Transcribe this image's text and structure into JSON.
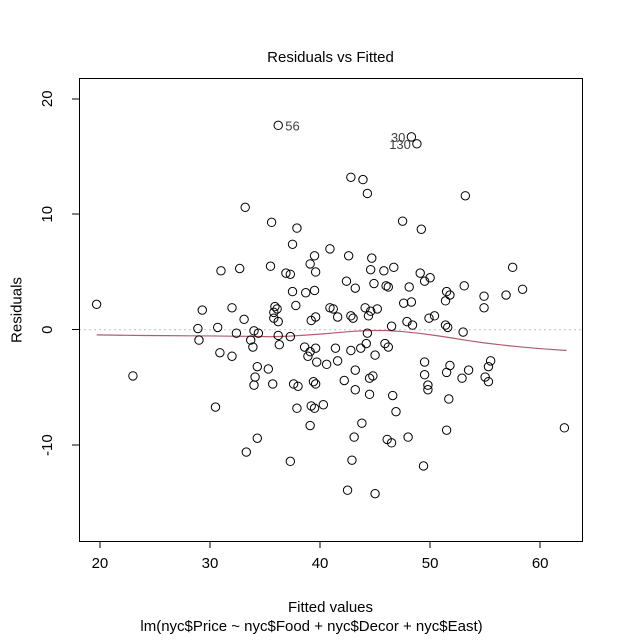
{
  "chart_data": {
    "type": "scatter",
    "title": "Residuals vs Fitted",
    "xlabel": "Fitted values",
    "ylabel": "Residuals",
    "subtitle": "lm(nyc$Price ~ nyc$Food + nyc$Decor + nyc$East)",
    "xlim": [
      18.1,
      63.8
    ],
    "ylim": [
      -18.3,
      21.8
    ],
    "x_ticks": [
      20,
      30,
      40,
      50,
      60
    ],
    "y_ticks": [
      -10,
      0,
      10,
      20
    ],
    "grid": false,
    "legend": "none",
    "point_style": {
      "marker": "open-circle",
      "color": "#000000",
      "radius": 4.2
    },
    "reference_line": {
      "y": 0,
      "style": "dotted",
      "color": "#bfbfbf"
    },
    "smooth_line": {
      "color": "#b25c6e",
      "points": [
        [
          19.7,
          -0.45
        ],
        [
          22,
          -0.48
        ],
        [
          24,
          -0.5
        ],
        [
          26,
          -0.51
        ],
        [
          28,
          -0.53
        ],
        [
          30,
          -0.54
        ],
        [
          32,
          -0.56
        ],
        [
          34,
          -0.58
        ],
        [
          35.5,
          -0.61
        ],
        [
          37,
          -0.57
        ],
        [
          38.5,
          -0.48
        ],
        [
          40,
          -0.38
        ],
        [
          41.5,
          -0.26
        ],
        [
          43,
          -0.14
        ],
        [
          44.5,
          -0.07
        ],
        [
          46,
          -0.07
        ],
        [
          47.5,
          -0.16
        ],
        [
          49,
          -0.31
        ],
        [
          50.5,
          -0.5
        ],
        [
          52,
          -0.72
        ],
        [
          53.5,
          -0.95
        ],
        [
          55,
          -1.15
        ],
        [
          56.5,
          -1.32
        ],
        [
          58,
          -1.47
        ],
        [
          59.5,
          -1.6
        ],
        [
          61,
          -1.71
        ],
        [
          62.4,
          -1.8
        ]
      ]
    },
    "labeled_points": [
      {
        "label": "56",
        "x": 36.2,
        "y": 17.7,
        "side": "right"
      },
      {
        "label": "30",
        "x": 48.3,
        "y": 16.7,
        "side": "left"
      },
      {
        "label": "130",
        "x": 48.8,
        "y": 16.1,
        "side": "left"
      }
    ],
    "points": [
      [
        36.2,
        17.7
      ],
      [
        48.3,
        16.7
      ],
      [
        48.8,
        16.1
      ],
      [
        42.8,
        13.2
      ],
      [
        43.9,
        13.0
      ],
      [
        44.3,
        11.8
      ],
      [
        53.2,
        11.6
      ],
      [
        33.2,
        10.6
      ],
      [
        35.6,
        9.3
      ],
      [
        37.9,
        8.8
      ],
      [
        47.5,
        9.4
      ],
      [
        49.2,
        8.7
      ],
      [
        37.5,
        7.4
      ],
      [
        40.9,
        7.0
      ],
      [
        39.5,
        6.4
      ],
      [
        42.6,
        6.4
      ],
      [
        44.7,
        6.2
      ],
      [
        39.1,
        5.7
      ],
      [
        35.5,
        5.5
      ],
      [
        57.5,
        5.4
      ],
      [
        46.7,
        5.4
      ],
      [
        32.7,
        5.3
      ],
      [
        44.6,
        5.2
      ],
      [
        45.8,
        5.1
      ],
      [
        31.0,
        5.1
      ],
      [
        39.6,
        5.0
      ],
      [
        36.9,
        4.9
      ],
      [
        49.1,
        4.9
      ],
      [
        37.3,
        4.8
      ],
      [
        50.0,
        4.5
      ],
      [
        42.4,
        4.2
      ],
      [
        49.5,
        4.2
      ],
      [
        44.9,
        4.0
      ],
      [
        46.0,
        3.8
      ],
      [
        46.2,
        3.7
      ],
      [
        53.1,
        3.8
      ],
      [
        48.1,
        3.7
      ],
      [
        43.2,
        3.6
      ],
      [
        58.4,
        3.5
      ],
      [
        39.5,
        3.4
      ],
      [
        37.5,
        3.3
      ],
      [
        51.5,
        3.3
      ],
      [
        38.7,
        3.2
      ],
      [
        51.8,
        3.0
      ],
      [
        56.9,
        3.0
      ],
      [
        54.9,
        2.9
      ],
      [
        51.4,
        2.5
      ],
      [
        48.3,
        2.4
      ],
      [
        47.6,
        2.3
      ],
      [
        19.7,
        2.2
      ],
      [
        37.8,
        2.1
      ],
      [
        35.9,
        2.0
      ],
      [
        40.9,
        1.9
      ],
      [
        54.9,
        1.9
      ],
      [
        32.0,
        1.9
      ],
      [
        41.2,
        1.8
      ],
      [
        36.1,
        1.8
      ],
      [
        44.1,
        1.9
      ],
      [
        44.6,
        1.6
      ],
      [
        45.2,
        1.8
      ],
      [
        29.3,
        1.7
      ],
      [
        35.8,
        1.5
      ],
      [
        50.4,
        1.2
      ],
      [
        42.8,
        1.2
      ],
      [
        44.4,
        1.2
      ],
      [
        39.6,
        1.1
      ],
      [
        41.6,
        1.1
      ],
      [
        43.0,
        1.0
      ],
      [
        35.8,
        1.0
      ],
      [
        49.9,
        1.0
      ],
      [
        33.1,
        0.9
      ],
      [
        39.2,
        0.8
      ],
      [
        36.2,
        0.7
      ],
      [
        47.9,
        0.7
      ],
      [
        51.4,
        0.4
      ],
      [
        48.4,
        0.4
      ],
      [
        46.5,
        0.3
      ],
      [
        30.7,
        0.2
      ],
      [
        51.6,
        0.2
      ],
      [
        28.9,
        0.1
      ],
      [
        34.0,
        -0.1
      ],
      [
        53.0,
        -0.2
      ],
      [
        32.4,
        -0.3
      ],
      [
        34.4,
        -0.3
      ],
      [
        44.3,
        -0.3
      ],
      [
        36.2,
        -0.5
      ],
      [
        37.3,
        -0.6
      ],
      [
        29.0,
        -0.9
      ],
      [
        33.7,
        -0.9
      ],
      [
        44.2,
        -1.2
      ],
      [
        45.9,
        -1.2
      ],
      [
        36.3,
        -1.3
      ],
      [
        33.9,
        -1.5
      ],
      [
        38.6,
        -1.5
      ],
      [
        46.2,
        -1.5
      ],
      [
        39.6,
        -1.6
      ],
      [
        41.4,
        -1.6
      ],
      [
        43.7,
        -1.6
      ],
      [
        42.8,
        -1.8
      ],
      [
        39.1,
        -1.9
      ],
      [
        30.9,
        -2.0
      ],
      [
        45.0,
        -2.2
      ],
      [
        32.0,
        -2.3
      ],
      [
        38.9,
        -2.3
      ],
      [
        41.6,
        -2.7
      ],
      [
        55.5,
        -2.7
      ],
      [
        39.7,
        -2.8
      ],
      [
        49.5,
        -2.8
      ],
      [
        40.6,
        -3.0
      ],
      [
        51.8,
        -3.1
      ],
      [
        34.3,
        -3.2
      ],
      [
        55.3,
        -3.2
      ],
      [
        35.3,
        -3.4
      ],
      [
        53.5,
        -3.5
      ],
      [
        43.2,
        -3.5
      ],
      [
        51.5,
        -3.7
      ],
      [
        49.5,
        -3.9
      ],
      [
        23.0,
        -4.0
      ],
      [
        44.8,
        -4.0
      ],
      [
        34.1,
        -4.1
      ],
      [
        55.0,
        -4.1
      ],
      [
        42.2,
        -4.4
      ],
      [
        44.5,
        -4.2
      ],
      [
        52.9,
        -4.2
      ],
      [
        39.4,
        -4.5
      ],
      [
        55.3,
        -4.5
      ],
      [
        35.7,
        -4.7
      ],
      [
        37.6,
        -4.7
      ],
      [
        39.6,
        -4.7
      ],
      [
        34.0,
        -4.8
      ],
      [
        49.8,
        -4.8
      ],
      [
        38.0,
        -4.9
      ],
      [
        43.2,
        -5.2
      ],
      [
        49.8,
        -5.2
      ],
      [
        44.5,
        -5.6
      ],
      [
        46.6,
        -5.7
      ],
      [
        51.7,
        -6.0
      ],
      [
        40.3,
        -6.5
      ],
      [
        39.2,
        -6.6
      ],
      [
        30.5,
        -6.7
      ],
      [
        37.9,
        -6.8
      ],
      [
        39.5,
        -6.8
      ],
      [
        46.9,
        -7.1
      ],
      [
        43.8,
        -8.1
      ],
      [
        39.1,
        -8.3
      ],
      [
        62.2,
        -8.5
      ],
      [
        51.5,
        -8.7
      ],
      [
        43.1,
        -9.3
      ],
      [
        48.0,
        -9.3
      ],
      [
        34.3,
        -9.4
      ],
      [
        46.1,
        -9.5
      ],
      [
        46.5,
        -9.8
      ],
      [
        33.3,
        -10.6
      ],
      [
        42.9,
        -11.3
      ],
      [
        37.3,
        -11.4
      ],
      [
        49.4,
        -11.8
      ],
      [
        42.5,
        -13.9
      ],
      [
        45.0,
        -14.2
      ]
    ]
  }
}
